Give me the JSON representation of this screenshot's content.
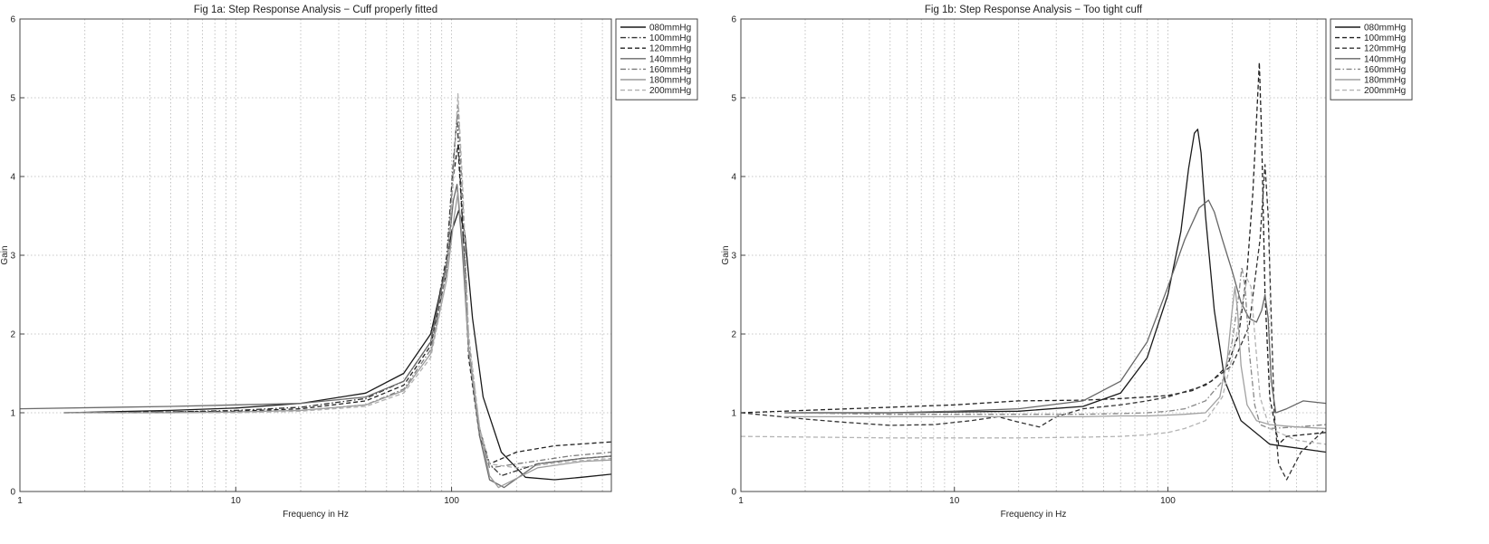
{
  "chart_data": [
    {
      "type": "line",
      "title": "Fig 1a: Step Response Analysis − Cuff properly fitted",
      "xlabel": "Frequency in Hz",
      "ylabel": "Gain",
      "xscale": "log",
      "xlim": [
        1,
        550
      ],
      "ylim": [
        0,
        6
      ],
      "xticks": [
        1,
        10,
        100
      ],
      "xtick_labels": [
        "1",
        "10",
        "100"
      ],
      "yticks": [
        0,
        1,
        2,
        3,
        4,
        5,
        6
      ],
      "ytick_labels": [
        "0",
        "1",
        "2",
        "3",
        "4",
        "5",
        "6"
      ],
      "grid": true,
      "legend_position": "top-right",
      "series": [
        {
          "name": "080mmHg",
          "color": "#1a1a1a",
          "dash": "solid",
          "x": [
            1.6,
            5,
            10,
            20,
            40,
            60,
            80,
            95,
            100,
            108,
            115,
            125,
            140,
            170,
            220,
            300,
            400,
            550
          ],
          "y": [
            1.0,
            1.03,
            1.06,
            1.12,
            1.25,
            1.5,
            2.0,
            2.9,
            3.3,
            3.57,
            3.3,
            2.2,
            1.2,
            0.5,
            0.18,
            0.15,
            0.18,
            0.22
          ]
        },
        {
          "name": "100mmHg",
          "color": "#333333",
          "dash": "dashdot",
          "x": [
            1.6,
            5,
            10,
            20,
            40,
            60,
            80,
            95,
            102,
            106,
            112,
            120,
            135,
            150,
            170,
            250,
            400,
            550
          ],
          "y": [
            1.0,
            1.01,
            1.03,
            1.07,
            1.18,
            1.4,
            1.9,
            3.0,
            4.2,
            4.75,
            3.5,
            1.8,
            0.8,
            0.35,
            0.2,
            0.35,
            0.42,
            0.45
          ]
        },
        {
          "name": "120mmHg",
          "color": "#222222",
          "dash": "dashed",
          "x": [
            1.6,
            5,
            10,
            20,
            40,
            60,
            80,
            95,
            102,
            107,
            113,
            120,
            135,
            150,
            200,
            300,
            550
          ],
          "y": [
            1.0,
            1.01,
            1.02,
            1.05,
            1.15,
            1.35,
            1.85,
            2.8,
            4.0,
            4.4,
            3.3,
            1.7,
            0.7,
            0.35,
            0.5,
            0.58,
            0.63
          ]
        },
        {
          "name": "140mmHg",
          "color": "#6a6a6a",
          "dash": "solid",
          "x": [
            1,
            5,
            10,
            20,
            40,
            60,
            80,
            95,
            102,
            106,
            112,
            120,
            135,
            150,
            175,
            250,
            400,
            550
          ],
          "y": [
            1.05,
            1.08,
            1.1,
            1.12,
            1.2,
            1.4,
            1.9,
            2.9,
            3.7,
            3.9,
            3.1,
            1.8,
            0.7,
            0.15,
            0.05,
            0.35,
            0.42,
            0.45
          ]
        },
        {
          "name": "160mmHg",
          "color": "#7a7a7a",
          "dash": "dashdot",
          "x": [
            1.6,
            5,
            10,
            20,
            40,
            60,
            80,
            95,
            103,
            107,
            113,
            120,
            135,
            150,
            200,
            350,
            550
          ],
          "y": [
            1.0,
            1.0,
            1.01,
            1.03,
            1.1,
            1.3,
            1.8,
            2.8,
            4.3,
            4.9,
            3.6,
            1.9,
            0.8,
            0.3,
            0.35,
            0.45,
            0.5
          ]
        },
        {
          "name": "180mmHg",
          "color": "#9c9c9c",
          "dash": "solid",
          "x": [
            1.6,
            5,
            10,
            20,
            40,
            60,
            80,
            95,
            103,
            107,
            113,
            120,
            135,
            150,
            165,
            250,
            400,
            550
          ],
          "y": [
            1.0,
            1.0,
            1.01,
            1.03,
            1.1,
            1.28,
            1.75,
            2.7,
            3.5,
            3.8,
            3.1,
            1.8,
            0.8,
            0.2,
            0.05,
            0.3,
            0.38,
            0.4
          ]
        },
        {
          "name": "200mmHg",
          "color": "#b0b0b0",
          "dash": "dashed",
          "x": [
            1.6,
            5,
            10,
            20,
            40,
            60,
            80,
            95,
            103,
            107,
            113,
            120,
            135,
            150,
            200,
            350,
            550
          ],
          "y": [
            1.0,
            1.0,
            1.0,
            1.02,
            1.08,
            1.25,
            1.7,
            2.7,
            4.2,
            5.05,
            3.8,
            2.0,
            0.8,
            0.35,
            0.3,
            0.38,
            0.42
          ]
        }
      ]
    },
    {
      "type": "line",
      "title": "Fig 1b: Step Response Analysis − Too tight cuff",
      "xlabel": "Frequency in Hz",
      "ylabel": "Gain",
      "xscale": "log",
      "xlim": [
        1,
        550
      ],
      "ylim": [
        0,
        6
      ],
      "xticks": [
        1,
        10,
        100
      ],
      "xtick_labels": [
        "1",
        "10",
        "100"
      ],
      "yticks": [
        0,
        1,
        2,
        3,
        4,
        5,
        6
      ],
      "ytick_labels": [
        "0",
        "1",
        "2",
        "3",
        "4",
        "5",
        "6"
      ],
      "grid": true,
      "legend_position": "top-right",
      "series": [
        {
          "name": "080mmHg",
          "color": "#1a1a1a",
          "dash": "solid",
          "x": [
            1.6,
            5,
            10,
            20,
            40,
            60,
            80,
            100,
            115,
            125,
            133,
            138,
            143,
            150,
            165,
            185,
            220,
            300,
            550
          ],
          "y": [
            1.0,
            1.0,
            1.01,
            1.02,
            1.08,
            1.25,
            1.7,
            2.5,
            3.3,
            4.1,
            4.55,
            4.6,
            4.3,
            3.5,
            2.3,
            1.4,
            0.9,
            0.6,
            0.5
          ]
        },
        {
          "name": "100mmHg",
          "color": "#222222",
          "dash": "dashed",
          "x": [
            1,
            10,
            20,
            40,
            60,
            80,
            100,
            130,
            160,
            190,
            215,
            235,
            250,
            262,
            268,
            275,
            285,
            300,
            330,
            360,
            550
          ],
          "y": [
            1.0,
            1.1,
            1.15,
            1.16,
            1.18,
            1.2,
            1.22,
            1.28,
            1.4,
            1.6,
            2.0,
            2.8,
            3.8,
            4.9,
            5.45,
            4.5,
            2.5,
            1.2,
            0.6,
            0.7,
            0.75
          ]
        },
        {
          "name": "120mmHg",
          "color": "#333333",
          "dash": "dashed",
          "x": [
            1,
            2,
            3,
            5,
            8,
            12,
            16,
            20,
            25,
            30,
            40,
            60,
            80,
            100,
            150,
            200,
            240,
            270,
            285,
            295,
            305,
            315,
            330,
            360,
            420,
            550
          ],
          "y": [
            1.0,
            0.92,
            0.88,
            0.84,
            0.85,
            0.9,
            0.95,
            0.88,
            0.82,
            0.95,
            1.05,
            1.1,
            1.15,
            1.2,
            1.35,
            1.6,
            2.1,
            3.2,
            4.15,
            3.5,
            2.2,
            1.0,
            0.35,
            0.15,
            0.5,
            0.8
          ]
        },
        {
          "name": "140mmHg",
          "color": "#666666",
          "dash": "solid",
          "x": [
            1.6,
            5,
            10,
            20,
            40,
            60,
            80,
            100,
            120,
            140,
            155,
            165,
            180,
            200,
            220,
            240,
            260,
            275,
            285,
            295,
            305,
            320,
            360,
            430,
            550
          ],
          "y": [
            1.0,
            1.0,
            1.02,
            1.05,
            1.15,
            1.4,
            1.9,
            2.6,
            3.2,
            3.6,
            3.7,
            3.55,
            3.2,
            2.8,
            2.4,
            2.2,
            2.15,
            2.3,
            2.5,
            2.2,
            1.4,
            1.0,
            1.05,
            1.15,
            1.12
          ]
        },
        {
          "name": "160mmHg",
          "color": "#888888",
          "dash": "dashdot",
          "x": [
            1.6,
            5,
            10,
            20,
            40,
            60,
            80,
            100,
            120,
            150,
            180,
            200,
            215,
            222,
            230,
            240,
            255,
            270,
            300,
            400,
            550
          ],
          "y": [
            1.0,
            0.98,
            0.98,
            0.98,
            0.98,
            0.99,
            1.0,
            1.02,
            1.05,
            1.15,
            1.4,
            1.9,
            2.5,
            2.85,
            2.6,
            1.8,
            1.1,
            0.85,
            0.8,
            0.82,
            0.85
          ]
        },
        {
          "name": "180mmHg",
          "color": "#a0a0a0",
          "dash": "solid",
          "x": [
            1.6,
            5,
            10,
            20,
            40,
            60,
            80,
            100,
            120,
            150,
            175,
            190,
            200,
            206,
            212,
            220,
            235,
            260,
            300,
            400,
            550
          ],
          "y": [
            0.95,
            0.95,
            0.95,
            0.95,
            0.95,
            0.96,
            0.96,
            0.97,
            0.98,
            1.0,
            1.2,
            1.7,
            2.3,
            2.6,
            2.3,
            1.6,
            1.1,
            0.9,
            0.85,
            0.82,
            0.8
          ]
        },
        {
          "name": "200mmHg",
          "color": "#b4b4b4",
          "dash": "dashed",
          "x": [
            1,
            5,
            10,
            20,
            40,
            60,
            80,
            100,
            120,
            150,
            180,
            200,
            220,
            235,
            245,
            255,
            270,
            300,
            400,
            550
          ],
          "y": [
            0.7,
            0.68,
            0.68,
            0.68,
            0.69,
            0.7,
            0.72,
            0.75,
            0.8,
            0.9,
            1.2,
            1.7,
            2.3,
            2.7,
            2.6,
            2.0,
            1.2,
            0.8,
            0.65,
            0.6
          ]
        }
      ]
    }
  ]
}
